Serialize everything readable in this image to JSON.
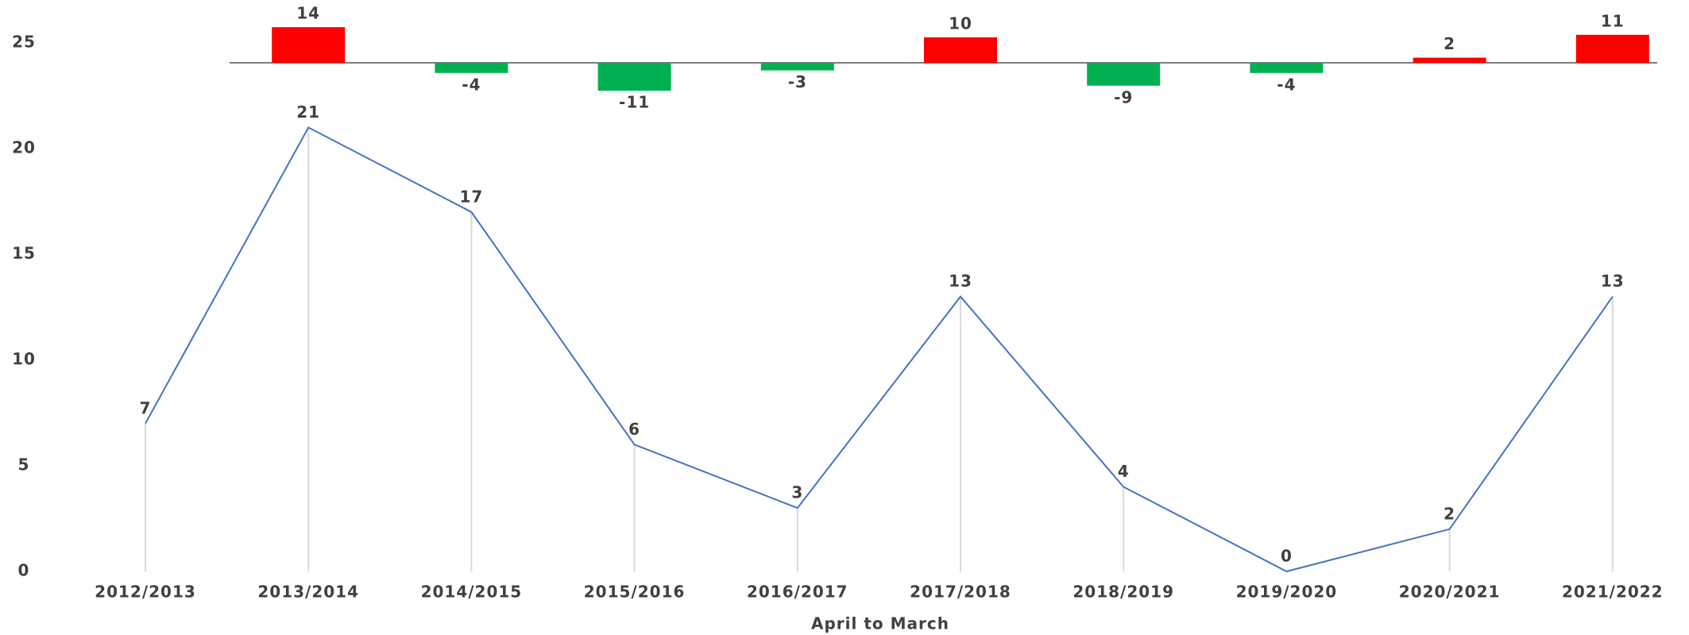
{
  "chart_data": [
    {
      "type": "bar",
      "values": [
        14,
        -4,
        -11,
        -3,
        10,
        -9,
        -4,
        2,
        11
      ],
      "positive_color": "#ff0000",
      "negative_color": "#00b050"
    },
    {
      "type": "line",
      "x_label": "April to March",
      "categories": [
        "2012/2013",
        "2013/2014",
        "2014/2015",
        "2015/2016",
        "2016/2017",
        "2017/2018",
        "2018/2019",
        "2019/2020",
        "2020/2021",
        "2021/2022"
      ],
      "values": [
        7,
        21,
        17,
        6,
        3,
        13,
        4,
        0,
        2,
        13
      ],
      "color": "#4472c4",
      "drop_line_color": "#d9d9d9",
      "ylim": [
        0,
        25
      ],
      "yticks": [
        0,
        5,
        10,
        15,
        20,
        25
      ]
    }
  ]
}
